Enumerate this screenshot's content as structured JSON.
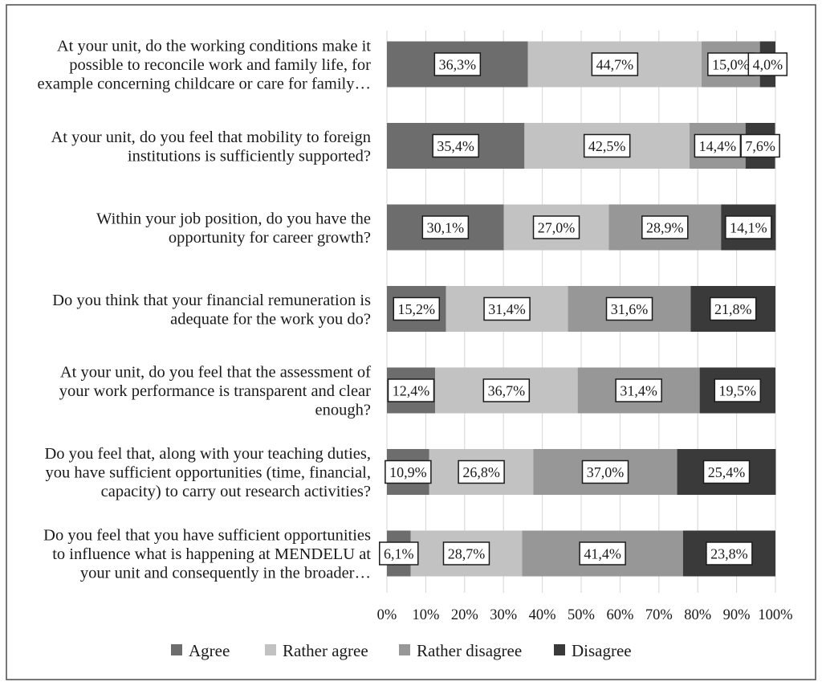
{
  "chart_data": {
    "type": "bar",
    "orientation": "horizontal",
    "stacked": "100%",
    "title": "",
    "xlabel": "",
    "ylabel": "",
    "xlim": [
      0,
      100
    ],
    "x_ticks": [
      "0%",
      "10%",
      "20%",
      "30%",
      "40%",
      "50%",
      "60%",
      "70%",
      "80%",
      "90%",
      "100%"
    ],
    "grid": "vertical",
    "legend_position": "bottom",
    "categories": [
      [
        "At your unit, do the working conditions make it",
        "possible to reconcile work and family life, for",
        "example concerning childcare or care for family…"
      ],
      [
        "At your unit, do you feel that mobility to foreign",
        "institutions is sufficiently supported?"
      ],
      [
        "Within your job position, do you have the",
        "opportunity for career growth?"
      ],
      [
        "Do you think that your financial remuneration is",
        "adequate for the work you do?"
      ],
      [
        "At your unit, do you feel that the assessment of",
        "your work performance is transparent and clear",
        "enough?"
      ],
      [
        "Do you feel that, along with your teaching duties,",
        "you have sufficient opportunities (time, financial,",
        "capacity) to carry out research activities?"
      ],
      [
        "Do you feel that you have sufficient opportunities",
        "to influence what is happening at MENDELU at",
        "your unit and consequently in the broader…"
      ]
    ],
    "series": [
      {
        "name": "Agree",
        "color": "#6d6d6d",
        "values": [
          36.3,
          35.4,
          30.1,
          15.2,
          12.4,
          10.9,
          6.1
        ],
        "labels": [
          "36,3%",
          "35,4%",
          "30,1%",
          "15,2%",
          "12,4%",
          "10,9%",
          "6,1%"
        ]
      },
      {
        "name": "Rather agree",
        "color": "#c2c2c2",
        "values": [
          44.7,
          42.5,
          27.0,
          31.4,
          36.7,
          26.8,
          28.7
        ],
        "labels": [
          "44,7%",
          "42,5%",
          "27,0%",
          "31,4%",
          "36,7%",
          "26,8%",
          "28,7%"
        ]
      },
      {
        "name": "Rather disagree",
        "color": "#979797",
        "values": [
          15.0,
          14.4,
          28.9,
          31.6,
          31.4,
          37.0,
          41.4
        ],
        "labels": [
          "15,0%",
          "14,4%",
          "28,9%",
          "31,6%",
          "31,4%",
          "37,0%",
          "41,4%"
        ]
      },
      {
        "name": "Disagree",
        "color": "#3a3a3a",
        "values": [
          4.0,
          7.6,
          14.1,
          21.8,
          19.5,
          25.4,
          23.8
        ],
        "labels": [
          "4,0%",
          "7,6%",
          "14,1%",
          "21,8%",
          "19,5%",
          "25,4%",
          "23,8%"
        ]
      }
    ]
  }
}
